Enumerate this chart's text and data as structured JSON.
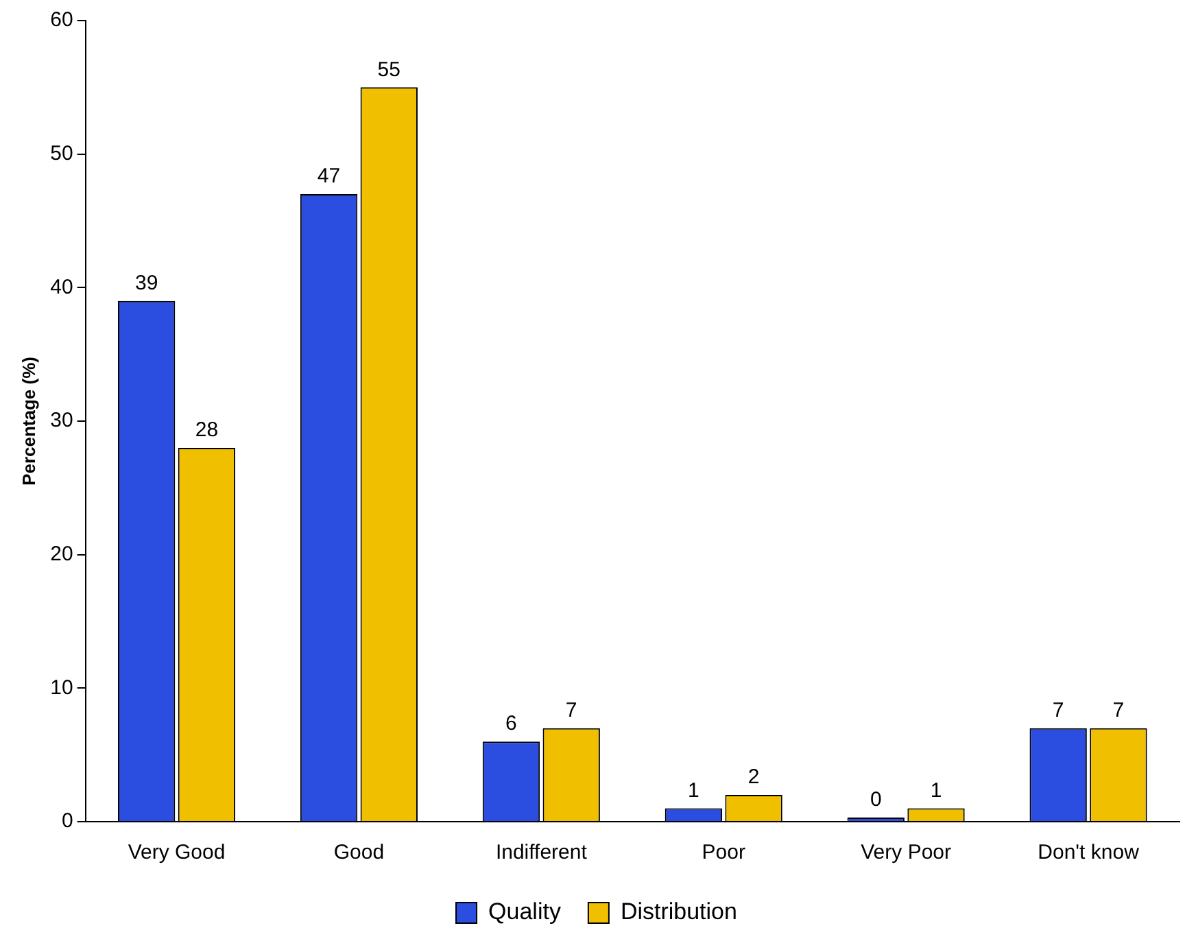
{
  "chart_data": {
    "type": "bar",
    "ylabel": "Percentage (%)",
    "categories": [
      "Very Good",
      "Good",
      "Indifferent",
      "Poor",
      "Very Poor",
      "Don't know"
    ],
    "series": [
      {
        "name": "Quality",
        "color": "#2b4de0",
        "values": [
          39,
          47,
          6,
          1,
          0,
          7
        ]
      },
      {
        "name": "Distribution",
        "color": "#f0c000",
        "values": [
          28,
          55,
          7,
          2,
          1,
          7
        ]
      }
    ],
    "ylim": [
      0,
      60
    ],
    "yticks": [
      0,
      10,
      20,
      30,
      40,
      50,
      60
    ],
    "grid": false,
    "legend": "bottom",
    "data_labels": true
  }
}
